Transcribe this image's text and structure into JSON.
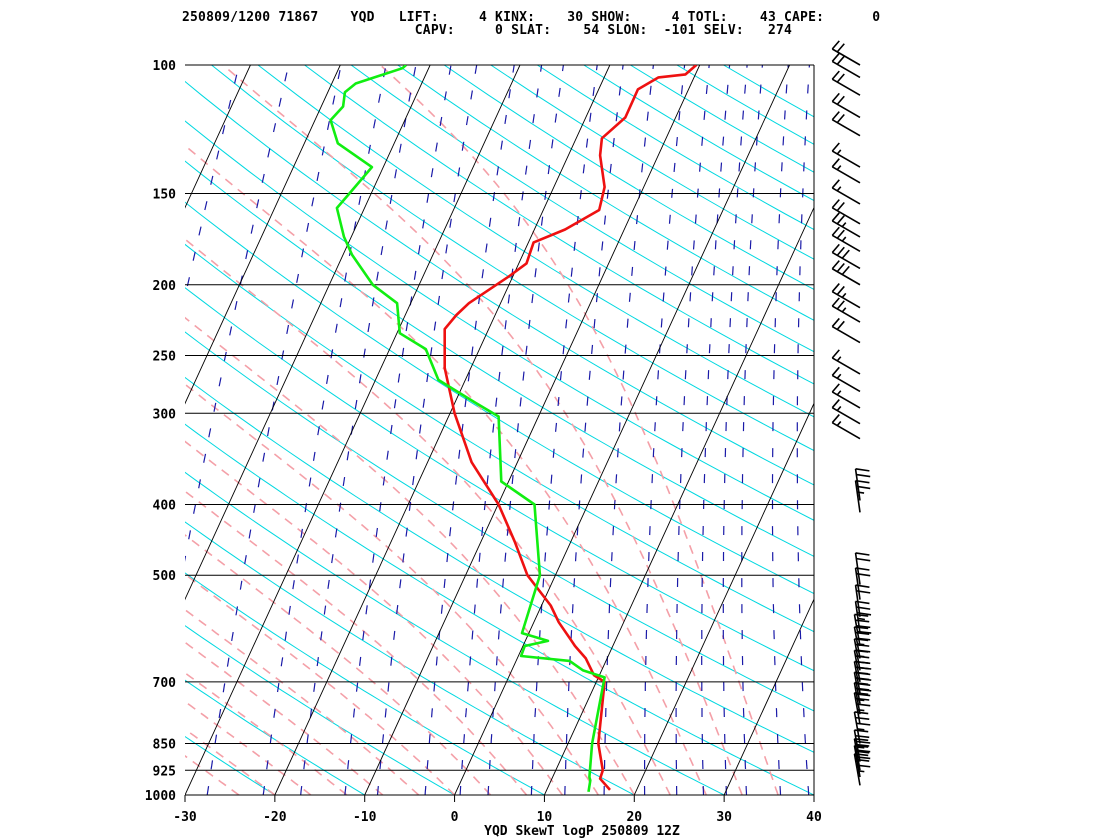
{
  "header": {
    "line1": "250809/1200 71867    YQD   LIFT:     4 KINX:    30 SHOW:     4 TOTL:    43 CAPE:      0",
    "line2": "                             CAPV:     0 SLAT:    54 SLON:  -101 SELV:   274"
  },
  "chart_data": {
    "type": "line",
    "title": "YQD SkewT logP 250809 12Z",
    "station": "YQD",
    "xlim": [
      -30,
      40
    ],
    "ylim_pressure": [
      1000,
      100
    ],
    "pressure_ticks": [
      1000,
      925,
      850,
      700,
      500,
      400,
      300,
      250,
      200,
      150,
      100
    ],
    "pressure_tick_labels": [
      "1000",
      "925",
      "850",
      "700",
      "500",
      "400",
      "300",
      "250",
      "200",
      "150",
      "100"
    ],
    "temp_ticks": [
      -30,
      -20,
      -10,
      0,
      10,
      20,
      30,
      40
    ],
    "temp_tick_labels": [
      "-30",
      "-20",
      "-10",
      "0",
      "10",
      "20",
      "30",
      "40"
    ],
    "colors": {
      "temperature": "#ee1111",
      "dewpoint": "#11ee11",
      "isotherm": "#000000",
      "isobar": "#000000",
      "dry_adiabat": "#00d8e0",
      "moist_adiabat": "#f4a0a8",
      "mixing_ratio": "#1a1aa8",
      "wind_barb": "#000000"
    },
    "series": [
      {
        "key": "temperature",
        "x_at_base": [
          17.3,
          16.2,
          16.5,
          16.0,
          16.7,
          15.5,
          14.6,
          13.4,
          12.9,
          11.6,
          10.7,
          8.1,
          6.7,
          4.9,
          1.9,
          0.0,
          -1.1,
          -1.1,
          0.2,
          1.6,
          6.0,
          8.0,
          8.8,
          12.3,
          16.1,
          16.7,
          16.2,
          16.4,
          19.0,
          20.4,
          22.7,
          25.7,
          26.9
        ],
        "pressure": [
          984,
          950,
          925,
          850,
          700,
          685,
          650,
          625,
          612,
          580,
          550,
          500,
          450,
          400,
          350,
          300,
          260,
          230,
          220,
          212,
          195,
          187,
          175,
          168,
          158,
          147,
          133,
          126,
          118,
          108,
          104,
          103,
          100
        ]
      },
      {
        "key": "dewpoint",
        "x_at_base": [
          14.9,
          15.1,
          15.0,
          15.3,
          16.7,
          14.3,
          12.8,
          7.4,
          7.8,
          10.4,
          7.5,
          9.5,
          8.9,
          5.2,
          4.9,
          2.3,
          -1.8,
          -3.2,
          -6.1,
          -6.4,
          -9.1,
          -11.4,
          -12.3,
          -13.1,
          -11.7,
          -9.2,
          -13.0,
          -13.8,
          -12.4,
          -12.2,
          -11.0,
          -5.8,
          -5.4
        ],
        "pressure": [
          990,
          955,
          945,
          850,
          690,
          675,
          655,
          645,
          625,
          615,
          600,
          500,
          400,
          372,
          303,
          290,
          270,
          245,
          233,
          212,
          200,
          182,
          172,
          157,
          150,
          138,
          128,
          119,
          114,
          109,
          106,
          101,
          100
        ]
      }
    ],
    "winds": [
      {
        "pressure": 970,
        "speed_kt": 35
      },
      {
        "pressure": 945,
        "speed_kt": 30
      },
      {
        "pressure": 925,
        "speed_kt": 30
      },
      {
        "pressure": 900,
        "speed_kt": 35
      },
      {
        "pressure": 850,
        "speed_kt": 35
      },
      {
        "pressure": 800,
        "speed_kt": 35
      },
      {
        "pressure": 775,
        "speed_kt": 35
      },
      {
        "pressure": 750,
        "speed_kt": 40
      },
      {
        "pressure": 725,
        "speed_kt": 40
      },
      {
        "pressure": 700,
        "speed_kt": 40
      },
      {
        "pressure": 675,
        "speed_kt": 35
      },
      {
        "pressure": 650,
        "speed_kt": 35
      },
      {
        "pressure": 625,
        "speed_kt": 40
      },
      {
        "pressure": 600,
        "speed_kt": 35
      },
      {
        "pressure": 570,
        "speed_kt": 20
      },
      {
        "pressure": 540,
        "speed_kt": 20
      },
      {
        "pressure": 515,
        "speed_kt": 20
      },
      {
        "pressure": 410,
        "speed_kt": 25
      },
      {
        "pressure": 395,
        "speed_kt": 20
      },
      {
        "pressure": 325,
        "speed_kt": 15
      },
      {
        "pressure": 310,
        "speed_kt": 15
      },
      {
        "pressure": 295,
        "speed_kt": 15
      },
      {
        "pressure": 280,
        "speed_kt": 15
      },
      {
        "pressure": 265,
        "speed_kt": 15
      },
      {
        "pressure": 240,
        "speed_kt": 20
      },
      {
        "pressure": 225,
        "speed_kt": 25
      },
      {
        "pressure": 215,
        "speed_kt": 25
      },
      {
        "pressure": 200,
        "speed_kt": 30
      },
      {
        "pressure": 190,
        "speed_kt": 30
      },
      {
        "pressure": 180,
        "speed_kt": 25
      },
      {
        "pressure": 172,
        "speed_kt": 25
      },
      {
        "pressure": 165,
        "speed_kt": 20
      },
      {
        "pressure": 155,
        "speed_kt": 15
      },
      {
        "pressure": 145,
        "speed_kt": 15
      },
      {
        "pressure": 138,
        "speed_kt": 15
      },
      {
        "pressure": 125,
        "speed_kt": 20
      },
      {
        "pressure": 118,
        "speed_kt": 20
      },
      {
        "pressure": 110,
        "speed_kt": 20
      },
      {
        "pressure": 104,
        "speed_kt": 20
      },
      {
        "pressure": 100,
        "speed_kt": 20
      }
    ]
  }
}
